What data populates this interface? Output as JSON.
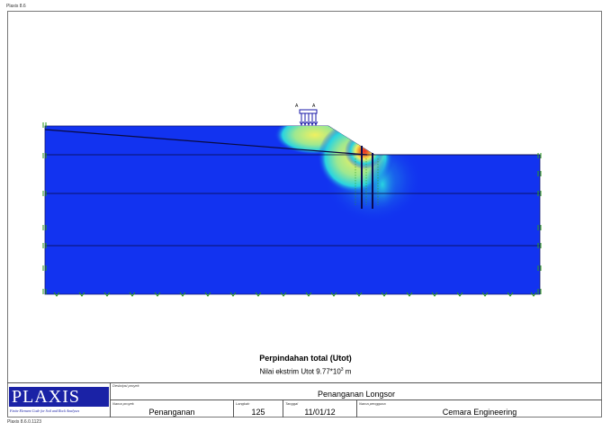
{
  "app": {
    "window_title": "Plaxis 8.6",
    "footer_version": "Plaxis 8.6.0.1123"
  },
  "plot": {
    "marker_a": "A",
    "colors": {
      "soil": "#1233f0",
      "contour_low": "#29d4e0",
      "contour_mid": "#f0f060",
      "contour_high": "#e8262a",
      "load": "#1a1aa8",
      "boundary": "#2a9a1a"
    }
  },
  "caption": {
    "title": "Perpindahan total (Utot)",
    "extreme_prefix": "Nilai ekstrim Utot 9.77*10",
    "extreme_exp": "3",
    "extreme_unit": " m"
  },
  "titleblock": {
    "logo_text": "PLAXIS",
    "logo_tagline": "Finite Element Code for Soil and Rock Analyses",
    "project_description_label": "Deskripsi proyek",
    "project_description": "Penanganan Longsor",
    "project_name_label": "Nama proyek",
    "project_name": "Penanganan",
    "step_label": "Langkah",
    "step": "125",
    "date_label": "Tanggal",
    "date": "11/01/12",
    "user_label": "Nama pengguna",
    "user": "Cemara Engineering"
  }
}
